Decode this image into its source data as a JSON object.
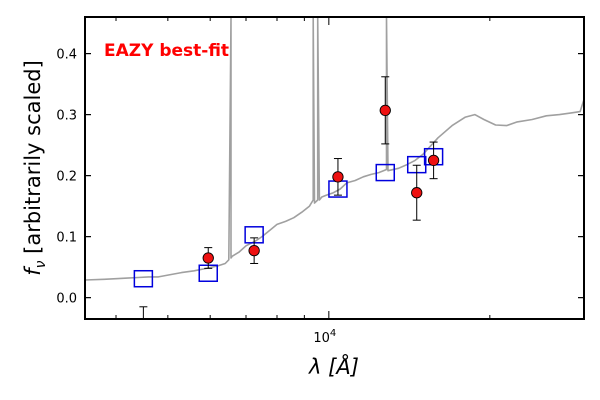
{
  "chart_data": {
    "type": "scatter",
    "annotation": "EAZY best-fit",
    "xlabel": "λ [Å]",
    "ylabel": "f_ν [arbitrarily scaled]",
    "ylabel_parts": {
      "f": "f",
      "nu": "ν",
      "rest": " [arbitrarily scaled]"
    },
    "xlabel_parts": {
      "lambda": "λ",
      "unit": "[Å]"
    },
    "x_scale": "log",
    "xlim": [
      3500,
      30000
    ],
    "ylim": [
      -0.035,
      0.46
    ],
    "x_major_ticks": [
      {
        "value": 10000,
        "base": "10",
        "exp": "4"
      }
    ],
    "y_ticks": [
      {
        "value": 0.0,
        "label": "0.0"
      },
      {
        "value": 0.1,
        "label": "0.1"
      },
      {
        "value": 0.2,
        "label": "0.2"
      },
      {
        "value": 0.3,
        "label": "0.3"
      },
      {
        "value": 0.4,
        "label": "0.4"
      }
    ],
    "grid": false,
    "colors": {
      "template": "#a0a0a0",
      "model_box": "#0000dd",
      "observed_fill": "#ee1111",
      "errorbar": "#000000",
      "annotation": "#ff0000"
    },
    "series": [
      {
        "kind": "line",
        "role": "best-fit template spectrum",
        "x": [
          3500,
          3800,
          4000,
          4200,
          4400,
          4600,
          4800,
          5000,
          5300,
          5600,
          5900,
          6200,
          6400,
          6500,
          6563,
          6563,
          6600,
          6800,
          7000,
          7300,
          7500,
          7800,
          8000,
          8300,
          8600,
          8900,
          9200,
          9350,
          9350,
          9400,
          9530,
          9530,
          9600,
          9700,
          9900,
          10200,
          10500,
          10800,
          11200,
          11600,
          12000,
          12400,
          12820,
          12820,
          12900,
          13500,
          14000,
          14500,
          15000,
          16000,
          17000,
          18000,
          18750,
          19500,
          20500,
          21500,
          22500,
          24000,
          25500,
          27000,
          28500,
          29500,
          30000
        ],
        "y": [
          0.029,
          0.03,
          0.031,
          0.032,
          0.033,
          0.034,
          0.034,
          0.037,
          0.041,
          0.044,
          0.048,
          0.052,
          0.056,
          0.062,
          0.46,
          0.065,
          0.068,
          0.075,
          0.085,
          0.093,
          0.1,
          0.112,
          0.12,
          0.125,
          0.131,
          0.14,
          0.15,
          0.16,
          0.46,
          0.155,
          0.16,
          0.46,
          0.16,
          0.165,
          0.168,
          0.172,
          0.178,
          0.188,
          0.192,
          0.198,
          0.202,
          0.205,
          0.21,
          0.46,
          0.208,
          0.212,
          0.218,
          0.225,
          0.235,
          0.262,
          0.282,
          0.296,
          0.3,
          0.292,
          0.283,
          0.282,
          0.288,
          0.292,
          0.298,
          0.3,
          0.303,
          0.305,
          0.325
        ]
      },
      {
        "kind": "model",
        "role": "model photometry",
        "x": [
          4500,
          5950,
          7250,
          10400,
          12750,
          14600,
          15700
        ],
        "y": [
          0.031,
          0.04,
          0.103,
          0.178,
          0.205,
          0.218,
          0.231
        ]
      },
      {
        "kind": "observed",
        "role": "observed photometry",
        "x": [
          5950,
          7250,
          10400,
          12750,
          14600,
          15700
        ],
        "y": [
          0.065,
          0.077,
          0.198,
          0.307,
          0.172,
          0.225
        ],
        "yerr": [
          0.017,
          0.021,
          0.03,
          0.055,
          0.045,
          0.03
        ]
      },
      {
        "kind": "upper-limit",
        "role": "observed photometry (upper limit)",
        "x": [
          4500
        ],
        "y": [
          -0.015
        ],
        "yerr_to": [
          -0.04
        ]
      }
    ]
  }
}
